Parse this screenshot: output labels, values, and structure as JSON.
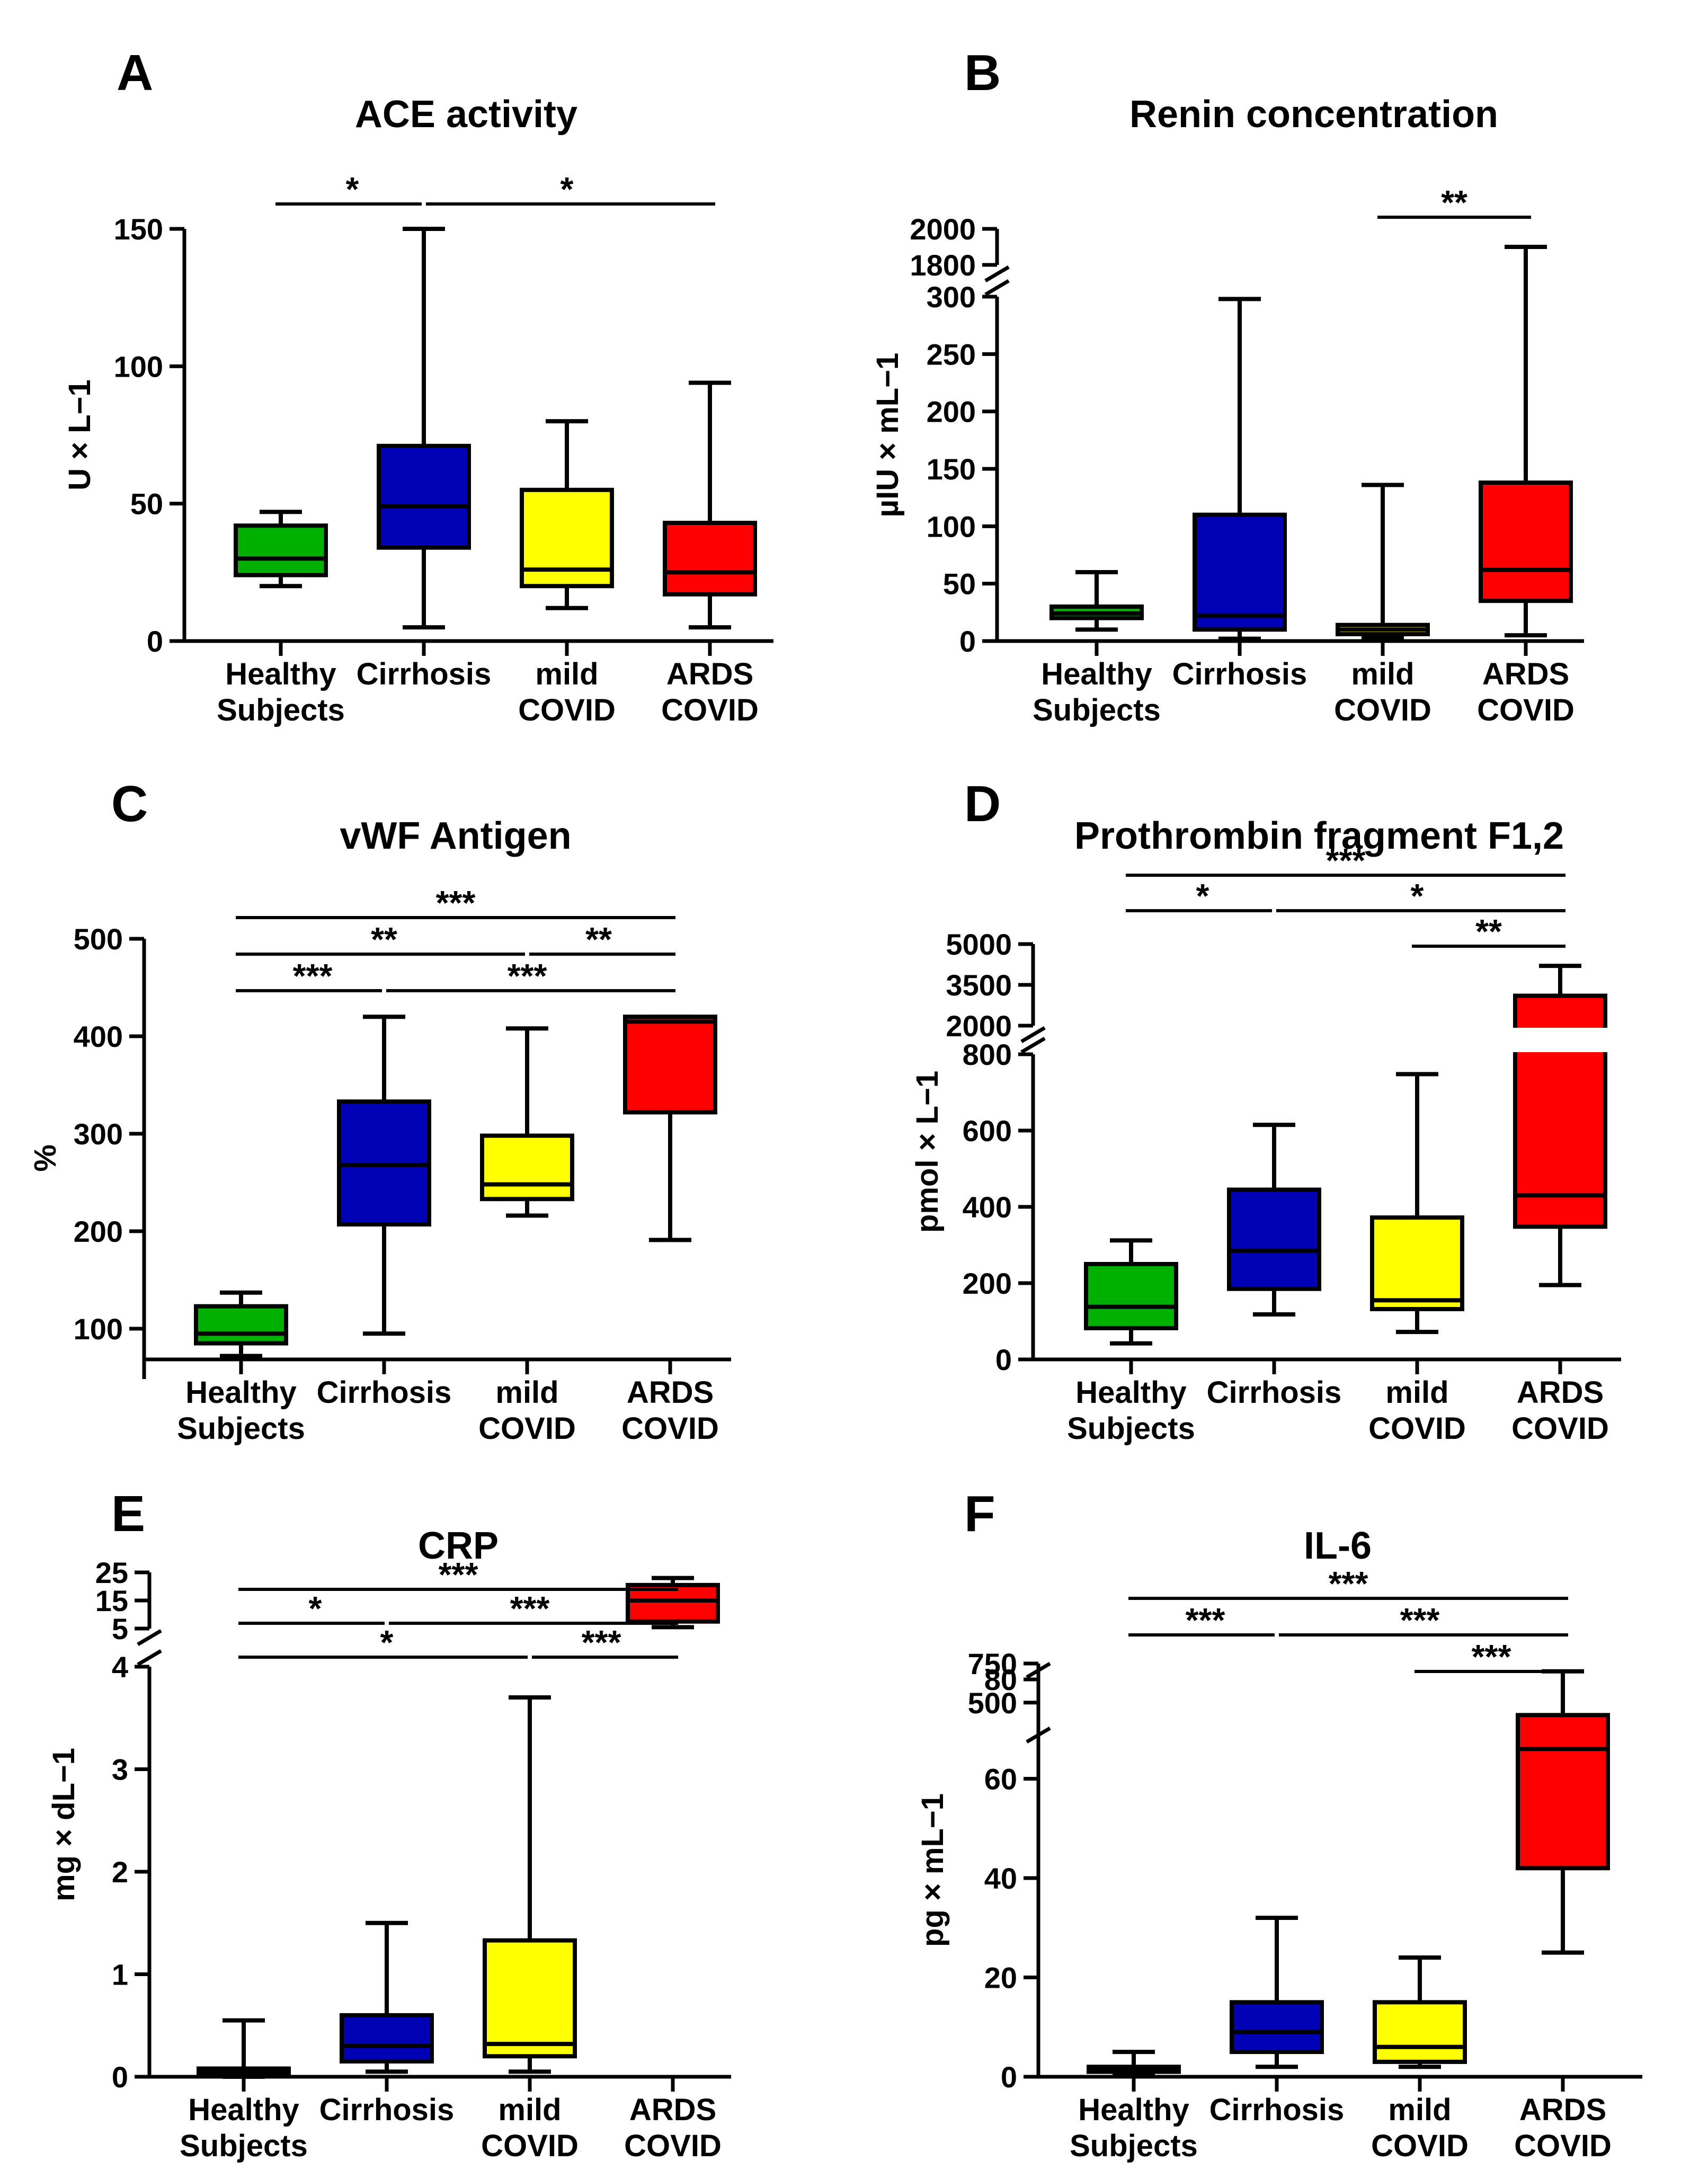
{
  "chart_data": [
    {
      "panel": "A",
      "type": "box",
      "title": "ACE activity",
      "ylabel": "U × L−1",
      "categories": [
        "Healthy Subjects",
        "Cirrhosis",
        "mild COVID",
        "ARDS COVID"
      ],
      "category_lines": [
        [
          "Healthy",
          "Subjects"
        ],
        [
          "Cirrhosis"
        ],
        [
          "mild",
          "COVID"
        ],
        [
          "ARDS",
          "COVID"
        ]
      ],
      "colors": [
        "#00b000",
        "#0000b4",
        "#ffff00",
        "#ff0000"
      ],
      "boxes": [
        {
          "min": 20,
          "q1": 24,
          "median": 30,
          "q3": 42,
          "max": 47
        },
        {
          "min": 5,
          "q1": 34,
          "median": 49,
          "q3": 71,
          "max": 150
        },
        {
          "min": 12,
          "q1": 20,
          "median": 26,
          "q3": 55,
          "max": 80
        },
        {
          "min": 5,
          "q1": 17,
          "median": 25,
          "q3": 43,
          "max": 94
        }
      ],
      "y_segments": [
        {
          "min": 0,
          "max": 150,
          "ticks": [
            0,
            50,
            100,
            150
          ]
        }
      ],
      "significance": [
        {
          "from": 0,
          "to": 1,
          "label": "*",
          "level": 0
        },
        {
          "from": 1,
          "to": 3,
          "label": "*",
          "level": 0
        }
      ]
    },
    {
      "panel": "B",
      "type": "box",
      "title": "Renin concentration",
      "ylabel": "µIU × mL−1",
      "categories": [
        "Healthy Subjects",
        "Cirrhosis",
        "mild COVID",
        "ARDS COVID"
      ],
      "category_lines": [
        [
          "Healthy",
          "Subjects"
        ],
        [
          "Cirrhosis"
        ],
        [
          "mild",
          "COVID"
        ],
        [
          "ARDS",
          "COVID"
        ]
      ],
      "colors": [
        "#00b000",
        "#0000b4",
        "#ffff00",
        "#ff0000"
      ],
      "boxes": [
        {
          "min": 10,
          "q1": 20,
          "median": 24,
          "q3": 30,
          "max": 60
        },
        {
          "min": 2,
          "q1": 10,
          "median": 22,
          "q3": 110,
          "max": 298
        },
        {
          "min": 3,
          "q1": 6,
          "median": 10,
          "q3": 14,
          "max": 136
        },
        {
          "min": 5,
          "q1": 35,
          "median": 62,
          "q3": 138,
          "max": 1900
        }
      ],
      "y_segments": [
        {
          "min": 0,
          "max": 300,
          "ticks": [
            0,
            50,
            100,
            150,
            200,
            250,
            300
          ]
        },
        {
          "min": 1800,
          "max": 2000,
          "ticks": [
            1800,
            2000
          ]
        }
      ],
      "significance": [
        {
          "from": 2,
          "to": 3,
          "label": "**",
          "level": 0
        }
      ]
    },
    {
      "panel": "C",
      "type": "box",
      "title": "vWF Antigen",
      "ylabel": "%",
      "categories": [
        "Healthy Subjects",
        "Cirrhosis",
        "mild COVID",
        "ARDS COVID"
      ],
      "category_lines": [
        [
          "Healthy",
          "Subjects"
        ],
        [
          "Cirrhosis"
        ],
        [
          "mild",
          "COVID"
        ],
        [
          "ARDS",
          "COVID"
        ]
      ],
      "colors": [
        "#00b000",
        "#0000b4",
        "#ffff00",
        "#ff0000"
      ],
      "boxes": [
        {
          "min": 72,
          "q1": 85,
          "median": 95,
          "q3": 123,
          "max": 137
        },
        {
          "min": 95,
          "q1": 207,
          "median": 268,
          "q3": 333,
          "max": 420
        },
        {
          "min": 216,
          "q1": 233,
          "median": 248,
          "q3": 298,
          "max": 408
        },
        {
          "min": 191,
          "q1": 322,
          "median": 415,
          "q3": 420,
          "max": 420
        }
      ],
      "y_segments": [
        {
          "min": 50,
          "max": 500,
          "ticks": [
            100,
            200,
            300,
            400,
            500
          ]
        }
      ],
      "significance": [
        {
          "from": 0,
          "to": 1,
          "label": "***",
          "level": 0
        },
        {
          "from": 1,
          "to": 3,
          "label": "***",
          "level": 0
        },
        {
          "from": 0,
          "to": 2,
          "label": "**",
          "level": 1
        },
        {
          "from": 2,
          "to": 3,
          "label": "**",
          "level": 1
        },
        {
          "from": 0,
          "to": 3,
          "label": "***",
          "level": 2
        }
      ]
    },
    {
      "panel": "D",
      "type": "box",
      "title": "Prothrombin fragment F1,2",
      "ylabel": "pmol × L−1",
      "categories": [
        "Healthy Subjects",
        "Cirrhosis",
        "mild COVID",
        "ARDS COVID"
      ],
      "category_lines": [
        [
          "Healthy",
          "Subjects"
        ],
        [
          "Cirrhosis"
        ],
        [
          "mild",
          "COVID"
        ],
        [
          "ARDS",
          "COVID"
        ]
      ],
      "colors": [
        "#00b000",
        "#0000b4",
        "#ffff00",
        "#ff0000"
      ],
      "boxes": [
        {
          "min": 42,
          "q1": 82,
          "median": 138,
          "q3": 250,
          "max": 312
        },
        {
          "min": 118,
          "q1": 185,
          "median": 285,
          "q3": 445,
          "max": 615
        },
        {
          "min": 72,
          "q1": 132,
          "median": 155,
          "q3": 372,
          "max": 748
        },
        {
          "min": 195,
          "q1": 348,
          "median": 430,
          "q3": 3100,
          "max": 4200
        }
      ],
      "y_segments": [
        {
          "min": 0,
          "max": 800,
          "ticks": [
            0,
            200,
            400,
            600,
            800
          ]
        },
        {
          "min": 2000,
          "max": 5000,
          "ticks": [
            2000,
            3500,
            5000
          ]
        }
      ],
      "significance": [
        {
          "from": 2,
          "to": 3,
          "label": "**",
          "level": 0
        },
        {
          "from": 0,
          "to": 1,
          "label": "*",
          "level": 1
        },
        {
          "from": 1,
          "to": 3,
          "label": "*",
          "level": 1
        },
        {
          "from": 0,
          "to": 3,
          "label": "***",
          "level": 2
        }
      ]
    },
    {
      "panel": "E",
      "type": "box",
      "title": "CRP",
      "ylabel": "mg × dL−1",
      "categories": [
        "Healthy Subjects",
        "Cirrhosis",
        "mild COVID",
        "ARDS COVID"
      ],
      "category_lines": [
        [
          "Healthy",
          "Subjects"
        ],
        [
          "Cirrhosis"
        ],
        [
          "mild",
          "COVID"
        ],
        [
          "ARDS",
          "COVID"
        ]
      ],
      "colors": [
        "#00b000",
        "#0000b4",
        "#ffff00",
        "#ff0000"
      ],
      "boxes": [
        {
          "min": 0,
          "q1": 0.02,
          "median": 0.05,
          "q3": 0.08,
          "max": 0.55
        },
        {
          "min": 0.05,
          "q1": 0.15,
          "median": 0.3,
          "q3": 0.6,
          "max": 1.5
        },
        {
          "min": 0.05,
          "q1": 0.2,
          "median": 0.32,
          "q3": 1.33,
          "max": 3.7
        },
        {
          "min": 5.5,
          "q1": 7.5,
          "median": 15,
          "q3": 20.5,
          "max": 23
        }
      ],
      "y_segments": [
        {
          "min": 0,
          "max": 4,
          "ticks": [
            0,
            1,
            2,
            3,
            4
          ]
        },
        {
          "min": 5,
          "max": 25,
          "ticks": [
            5,
            15,
            25
          ]
        }
      ],
      "significance": [
        {
          "from": 0,
          "to": 2,
          "label": "*",
          "level": 0
        },
        {
          "from": 2,
          "to": 3,
          "label": "***",
          "level": 0
        },
        {
          "from": 0,
          "to": 1,
          "label": "*",
          "level": 1
        },
        {
          "from": 1,
          "to": 3,
          "label": "***",
          "level": 1
        },
        {
          "from": 0,
          "to": 3,
          "label": "***",
          "level": 2
        }
      ]
    },
    {
      "panel": "F",
      "type": "box",
      "title": "IL-6",
      "ylabel": "pg × mL−1",
      "categories": [
        "Healthy Subjects",
        "Cirrhosis",
        "mild COVID",
        "ARDS COVID"
      ],
      "category_lines": [
        [
          "Healthy",
          "Subjects"
        ],
        [
          "Cirrhosis"
        ],
        [
          "mild",
          "COVID"
        ],
        [
          "ARDS",
          "COVID"
        ]
      ],
      "colors": [
        "#00b000",
        "#0000b4",
        "#ffff00",
        "#ff0000"
      ],
      "boxes": [
        {
          "min": 0.5,
          "q1": 1,
          "median": 1.5,
          "q3": 2,
          "max": 5
        },
        {
          "min": 2,
          "q1": 5,
          "median": 9,
          "q3": 15,
          "max": 32
        },
        {
          "min": 2,
          "q1": 3,
          "median": 6,
          "q3": 15,
          "max": 24
        },
        {
          "min": 25,
          "q1": 42,
          "median": 66,
          "q3": 420,
          "max": 700
        }
      ],
      "y_segments": [
        {
          "min": 0,
          "max": 80,
          "ticks": [
            0,
            20,
            40,
            60,
            80
          ]
        },
        {
          "min": 350,
          "max": 750,
          "ticks": [
            500,
            750
          ]
        }
      ],
      "significance": [
        {
          "from": 2,
          "to": 3,
          "label": "***",
          "level": 0
        },
        {
          "from": 0,
          "to": 1,
          "label": "***",
          "level": 1
        },
        {
          "from": 1,
          "to": 3,
          "label": "***",
          "level": 1
        },
        {
          "from": 0,
          "to": 3,
          "label": "***",
          "level": 2
        }
      ]
    }
  ]
}
